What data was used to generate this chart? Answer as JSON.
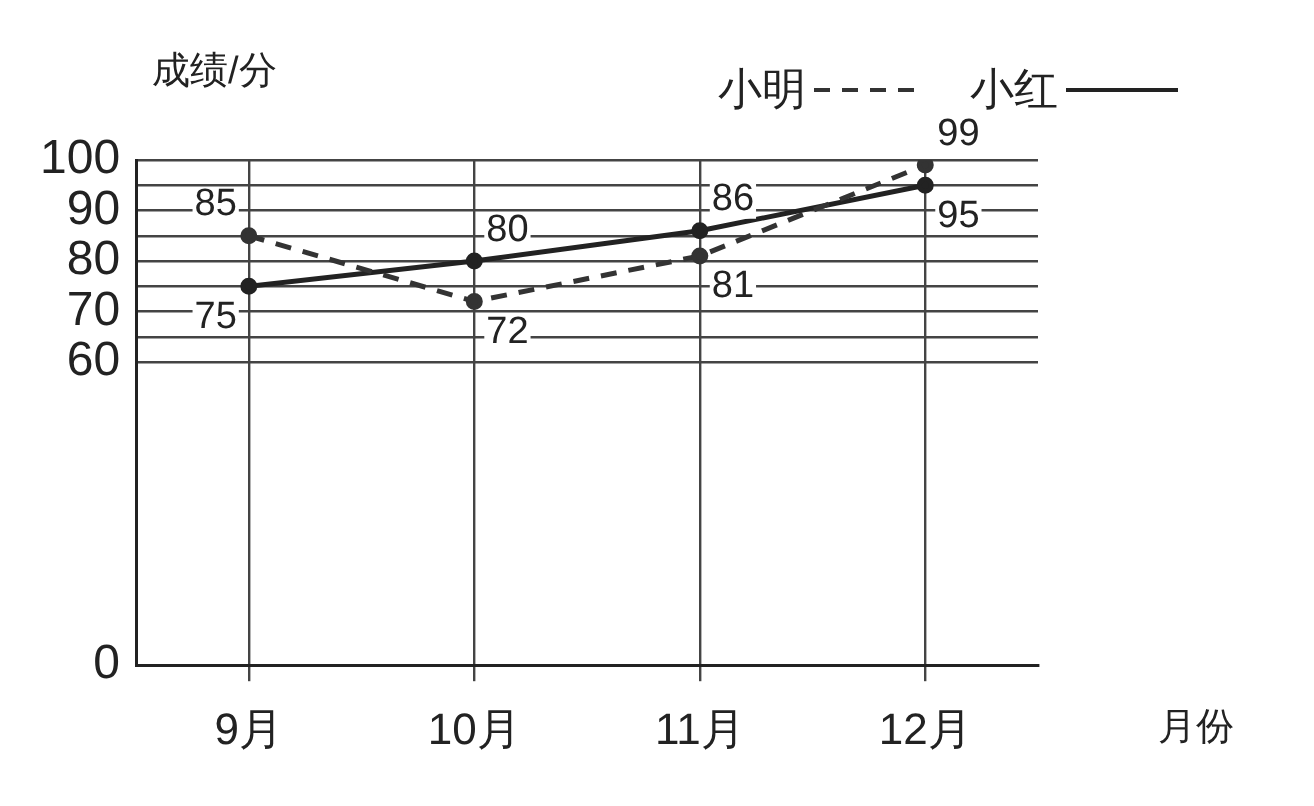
{
  "chart_data": {
    "type": "line",
    "xlabel": "月份",
    "ylabel": "成绩/分",
    "categories": [
      "9月",
      "10月",
      "11月",
      "12月"
    ],
    "series": [
      {
        "name": "小明",
        "color": "#333333",
        "values": [
          85,
          72,
          81,
          99
        ],
        "line_style": "dashed"
      },
      {
        "name": "小红",
        "color": "#222222",
        "values": [
          75,
          80,
          86,
          95
        ],
        "line_style": "solid"
      }
    ],
    "ylim": [
      0,
      100
    ],
    "yticks": [
      0,
      60,
      {
        "value": 65,
        "label": null
      },
      70,
      {
        "value": 75,
        "label": null
      },
      80,
      {
        "value": 85,
        "label": null
      },
      90,
      {
        "value": 95,
        "label": null
      },
      100
    ],
    "grid": true,
    "legend": "top right",
    "marker": "circle",
    "data_labels": true
  }
}
